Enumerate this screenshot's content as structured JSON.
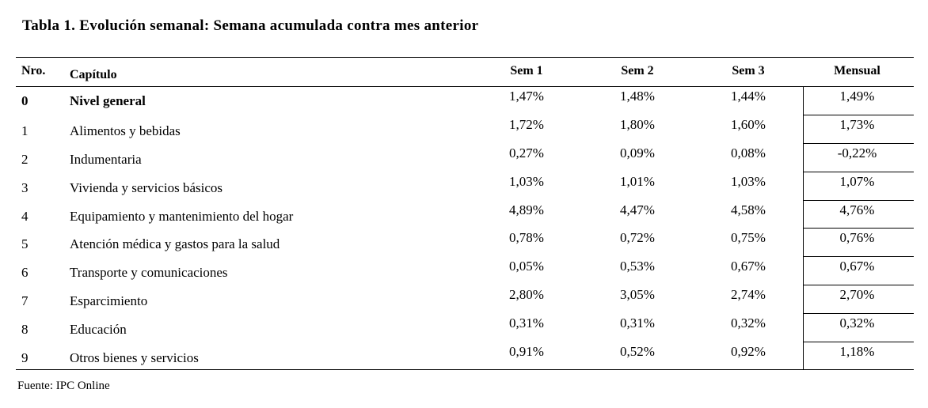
{
  "title": "Tabla 1. Evolución semanal: Semana acumulada contra mes anterior",
  "headers": {
    "nro": "Nro.",
    "capitulo": "Capítulo",
    "sem1": "Sem 1",
    "sem2": "Sem 2",
    "sem3": "Sem 3",
    "mensual": "Mensual"
  },
  "rows": [
    {
      "nro": "0",
      "capitulo": "Nivel general",
      "sem1": "1,47%",
      "sem2": "1,48%",
      "sem3": "1,44%",
      "mensual": "1,49%"
    },
    {
      "nro": "1",
      "capitulo": "Alimentos y bebidas",
      "sem1": "1,72%",
      "sem2": "1,80%",
      "sem3": "1,60%",
      "mensual": "1,73%"
    },
    {
      "nro": "2",
      "capitulo": "Indumentaria",
      "sem1": "0,27%",
      "sem2": "0,09%",
      "sem3": "0,08%",
      "mensual": "-0,22%"
    },
    {
      "nro": "3",
      "capitulo": "Vivienda y servicios básicos",
      "sem1": "1,03%",
      "sem2": "1,01%",
      "sem3": "1,03%",
      "mensual": "1,07%"
    },
    {
      "nro": "4",
      "capitulo": "Equipamiento y mantenimiento del hogar",
      "sem1": "4,89%",
      "sem2": "4,47%",
      "sem3": "4,58%",
      "mensual": "4,76%"
    },
    {
      "nro": "5",
      "capitulo": "Atención médica y gastos para la salud",
      "sem1": "0,78%",
      "sem2": "0,72%",
      "sem3": "0,75%",
      "mensual": "0,76%"
    },
    {
      "nro": "6",
      "capitulo": "Transporte y comunicaciones",
      "sem1": "0,05%",
      "sem2": "0,53%",
      "sem3": "0,67%",
      "mensual": "0,67%"
    },
    {
      "nro": "7",
      "capitulo": "Esparcimiento",
      "sem1": "2,80%",
      "sem2": "3,05%",
      "sem3": "2,74%",
      "mensual": "2,70%"
    },
    {
      "nro": "8",
      "capitulo": "Educación",
      "sem1": "0,31%",
      "sem2": "0,31%",
      "sem3": "0,32%",
      "mensual": "0,32%"
    },
    {
      "nro": "9",
      "capitulo": "Otros bienes y servicios",
      "sem1": "0,91%",
      "sem2": "0,52%",
      "sem3": "0,92%",
      "mensual": "1,18%"
    }
  ],
  "source": "Fuente: IPC Online"
}
